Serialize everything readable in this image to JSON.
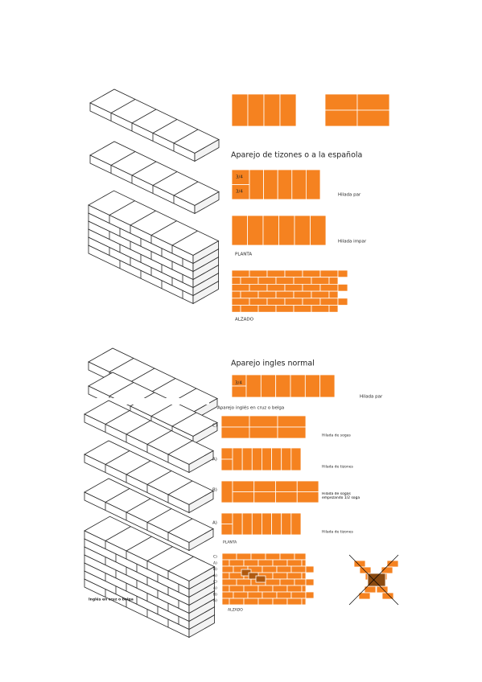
{
  "section1": {
    "title": "Aparejo de tizones o a la española",
    "box_labels": [
      "3/4",
      "3/4"
    ],
    "row_labels": [
      "Hilada par",
      "Hilada impar"
    ],
    "plan_label": "PLANTA",
    "elevation_label": "ALZADO"
  },
  "section2": {
    "title": "Aparejo ingles normal",
    "box_label": "3/4",
    "row_label": "Hilada par"
  },
  "section3": {
    "title": "Aparejo inglés en cruz o belga",
    "rows": [
      {
        "letter": "C)",
        "label": "Hilada de sogas"
      },
      {
        "letter": "A)",
        "label": "Hilada de tizones"
      },
      {
        "letter": "B)",
        "label": "Hilada de sogas empezando 1/2 soga"
      },
      {
        "letter": "A)",
        "label": "Hilada de tizones"
      }
    ],
    "plan_label": "PLANTA",
    "elevation_letters": [
      "C)",
      "A)",
      "B)",
      "A)",
      "C)",
      "A)",
      "B)",
      "A)"
    ],
    "elevation_label": "ALZADO",
    "caption": "Inglés en cruz o belga"
  }
}
